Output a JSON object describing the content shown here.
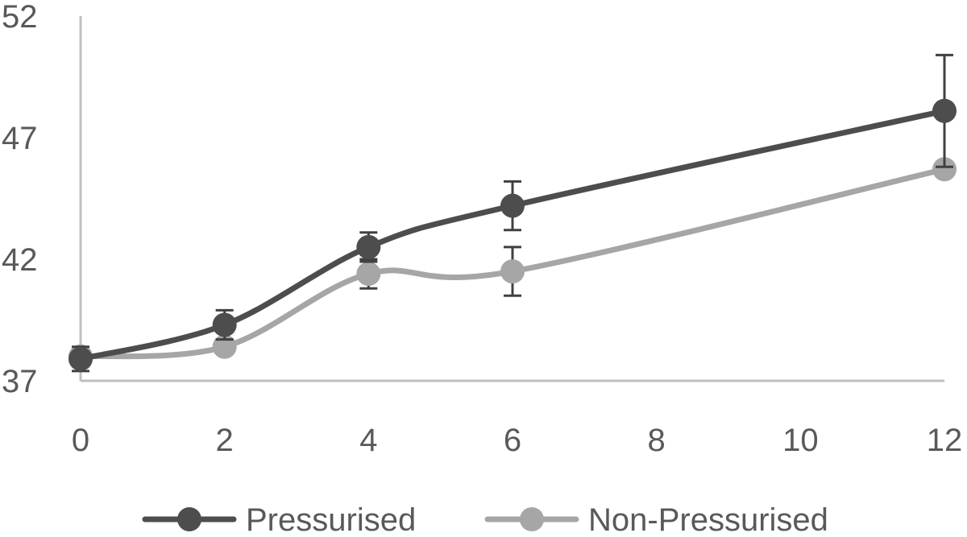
{
  "chart_data": {
    "type": "line",
    "title": "",
    "xlabel": "",
    "ylabel": "",
    "x": [
      0,
      2,
      4,
      6,
      12
    ],
    "xticks": [
      0,
      2,
      4,
      6,
      8,
      10,
      12
    ],
    "xlim": [
      0,
      12
    ],
    "yticks": [
      37,
      42,
      47,
      52
    ],
    "ylim": [
      37,
      52
    ],
    "grid": false,
    "legend": "bottom",
    "smooth": true,
    "series": [
      {
        "name": "Pressurised",
        "color": "#4d4d4d",
        "values": [
          37.9,
          39.3,
          42.5,
          44.2,
          48.1
        ],
        "error": [
          0.5,
          0.6,
          0.6,
          1.0,
          2.3
        ]
      },
      {
        "name": "Non-Pressurised",
        "color": "#a6a6a6",
        "values": [
          38.0,
          38.4,
          41.4,
          41.5,
          45.7
        ],
        "error": [
          0,
          0,
          0.6,
          1.0,
          0
        ]
      }
    ]
  }
}
